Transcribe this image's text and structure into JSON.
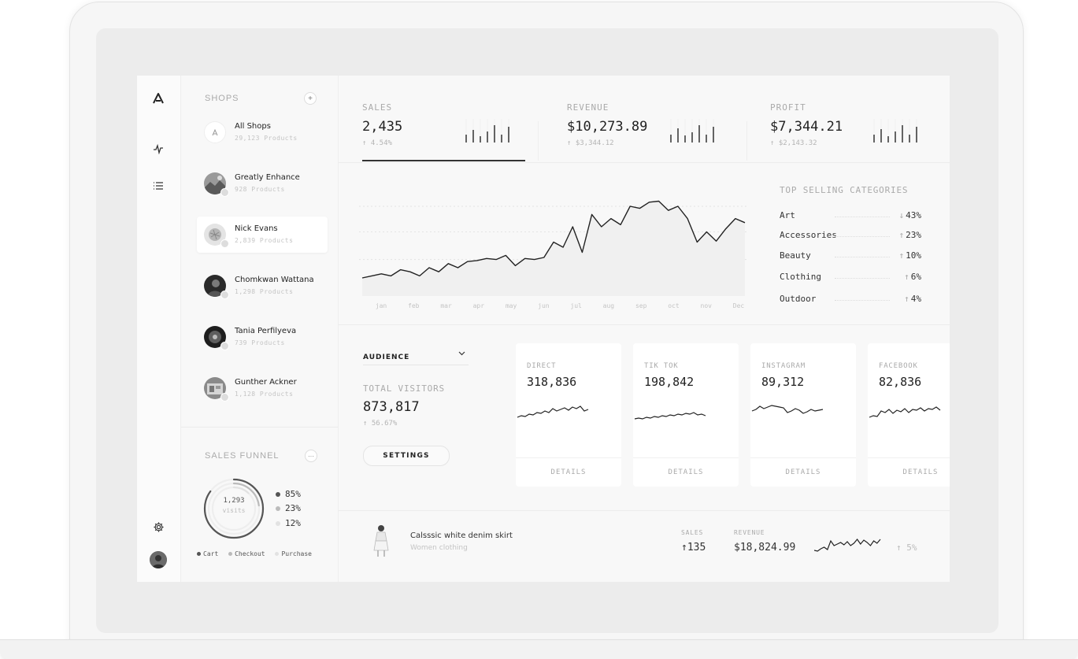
{
  "sidebar": {
    "shops_title": "SHOPS",
    "add_label": "+",
    "shops": [
      {
        "name": "All Shops",
        "count": "29,123 Products",
        "active": false
      },
      {
        "name": "Greatly Enhance",
        "count": "928 Products",
        "active": false
      },
      {
        "name": "Nick Evans",
        "count": "2,839 Products",
        "active": true
      },
      {
        "name": "Chomkwan Wattana",
        "count": "1,298 Products",
        "active": false
      },
      {
        "name": "Tania Perfilyeva",
        "count": "739 Products",
        "active": false
      },
      {
        "name": "Gunther Ackner",
        "count": "1,128 Products",
        "active": false
      }
    ]
  },
  "funnel": {
    "title": "SALES FUNNEL",
    "more_label": "···",
    "center_value": "1,293",
    "center_label": "visits",
    "stages": [
      {
        "name": "Cart",
        "percent": "85%",
        "value": 85,
        "color": "#555555"
      },
      {
        "name": "Checkout",
        "percent": "23%",
        "value": 23,
        "color": "#bbbbbb"
      },
      {
        "name": "Purchase",
        "percent": "12%",
        "value": 12,
        "color": "#e2e2e2"
      }
    ]
  },
  "kpis": [
    {
      "label": "SALES",
      "value": "2,435",
      "delta": "↑ 4.54%",
      "active": true
    },
    {
      "label": "REVENUE",
      "value": "$10,273.89",
      "delta": "↑ $3,344.12",
      "active": false
    },
    {
      "label": "PROFIT",
      "value": "$7,344.21",
      "delta": "↑ $2,143.32",
      "active": false
    }
  ],
  "main_chart": {
    "type": "line",
    "months": [
      "jan",
      "feb",
      "mar",
      "apr",
      "may",
      "jun",
      "jul",
      "aug",
      "sep",
      "oct",
      "nov",
      "Dec"
    ],
    "values": [
      10,
      12,
      14,
      12,
      18,
      16,
      12,
      20,
      16,
      24,
      20,
      26,
      27,
      29,
      28,
      32,
      22,
      29,
      28,
      30,
      45,
      40,
      60,
      35,
      72,
      60,
      68,
      62,
      80,
      78,
      84,
      85,
      76,
      80,
      68,
      45,
      55,
      46,
      58,
      68,
      64
    ]
  },
  "categories": {
    "title": "TOP SELLING CATEGORIES",
    "items": [
      {
        "name": "Art",
        "dir": "↓",
        "value": "43%"
      },
      {
        "name": "Accessories",
        "dir": "↑",
        "value": "23%"
      },
      {
        "name": "Beauty",
        "dir": "↑",
        "value": "10%"
      },
      {
        "name": "Clothing",
        "dir": "↑",
        "value": "6%"
      },
      {
        "name": "Outdoor",
        "dir": "↑",
        "value": "4%"
      }
    ]
  },
  "audience": {
    "dropdown_label": "AUDIENCE",
    "total_label": "TOTAL VISITORS",
    "total_value": "873,817",
    "total_delta": "↑ 56.67%",
    "settings_label": "SETTINGS"
  },
  "sources": [
    {
      "label": "DIRECT",
      "value": "318,836",
      "details": "DETAILS"
    },
    {
      "label": "TIK TOK",
      "value": "198,842",
      "details": "DETAILS"
    },
    {
      "label": "INSTAGRAM",
      "value": "89,312",
      "details": "DETAILS"
    },
    {
      "label": "FACEBOOK",
      "value": "82,836",
      "details": "DETAILS"
    }
  ],
  "product": {
    "name": "Calsssic white denim skirt",
    "category": "Women clothing",
    "sales_label": "SALES",
    "sales_value": "↑135",
    "revenue_label": "REVENUE",
    "revenue_value": "$18,824.99",
    "change": "↑ 5%"
  }
}
